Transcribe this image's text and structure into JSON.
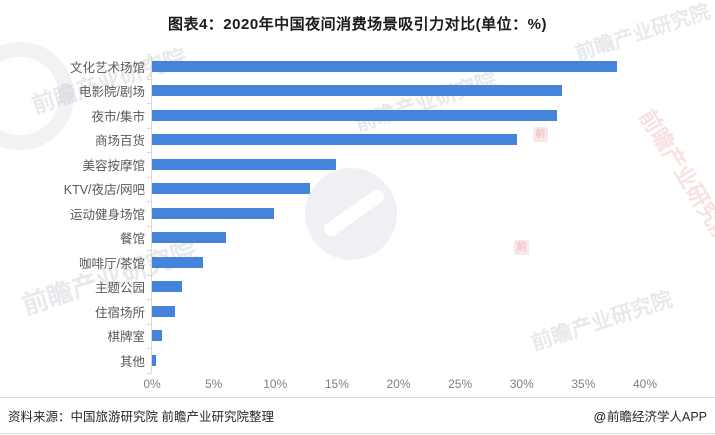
{
  "title": "图表4：2020年中国夜间消费场景吸引力对比(单位：%)",
  "chart_data": {
    "type": "bar",
    "orientation": "horizontal",
    "title": "图表4：2020年中国夜间消费场景吸引力对比(单位：%)",
    "unit": "%",
    "categories": [
      "文化艺术场馆",
      "电影院/剧场",
      "夜市/集市",
      "商场百货",
      "美容按摩馆",
      "KTV/夜店/网吧",
      "运动健身场馆",
      "餐馆",
      "咖啡厅/茶馆",
      "主题公园",
      "住宿场所",
      "棋牌室",
      "其他"
    ],
    "values": [
      37.7,
      33.3,
      32.9,
      29.6,
      14.9,
      12.8,
      9.9,
      6.0,
      4.1,
      2.4,
      1.9,
      0.8,
      0.3
    ],
    "xlim": [
      0,
      40
    ],
    "x_ticks": [
      "0%",
      "5%",
      "10%",
      "15%",
      "20%",
      "25%",
      "30%",
      "35%",
      "40%"
    ],
    "xlabel": "",
    "ylabel": "",
    "grid": false,
    "legend": false,
    "bar_color": "#4485db",
    "axis_color": "#d9d9d9",
    "tick_label_color": "#808080",
    "category_label_color": "#595959"
  },
  "footer": {
    "source": "资料来源：中国旅游研究院 前瞻产业研究院整理",
    "credit_icon": "@",
    "credit": "前瞻经济学人APP"
  },
  "watermark": {
    "text": "前瞻产业研究院",
    "stamp": "前"
  }
}
